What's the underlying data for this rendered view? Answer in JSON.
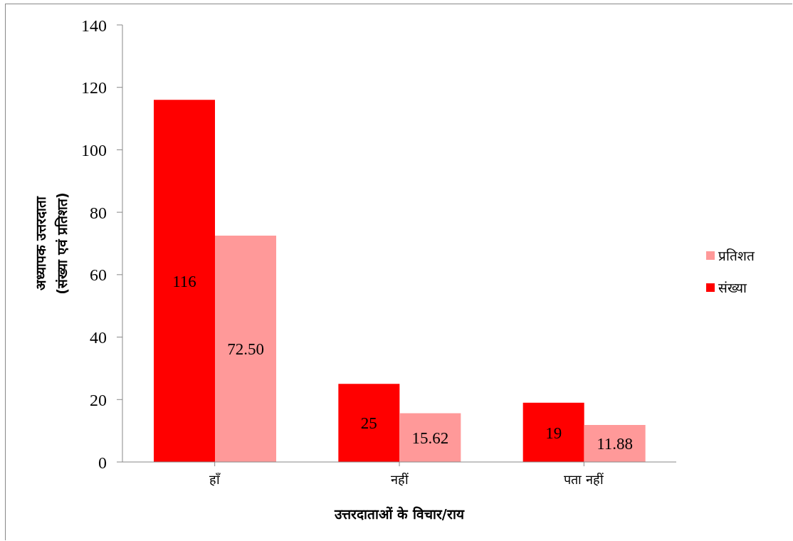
{
  "chart_data": {
    "type": "bar",
    "xlabel": "उत्तरदाताओं के विचार/राय",
    "ylabel": "अध्यापक उत्तरदाता\n(संख्या एवं प्रतिशत)",
    "categories": [
      "हाँ",
      "नहीं",
      "पता नहीं"
    ],
    "series": [
      {
        "name": "संख्या",
        "color": "#ff0000",
        "values": [
          116,
          25,
          19
        ],
        "value_labels": [
          "116",
          "25",
          "19"
        ]
      },
      {
        "name": "प्रतिशत",
        "color": "#ff9999",
        "values": [
          72.5,
          15.62,
          11.88
        ],
        "value_labels": [
          "72.50",
          "15.62",
          "11.88"
        ]
      }
    ],
    "ylim": [
      0,
      140
    ],
    "yticks": [
      0,
      20,
      40,
      60,
      80,
      100,
      120,
      140
    ],
    "legend": "right"
  }
}
